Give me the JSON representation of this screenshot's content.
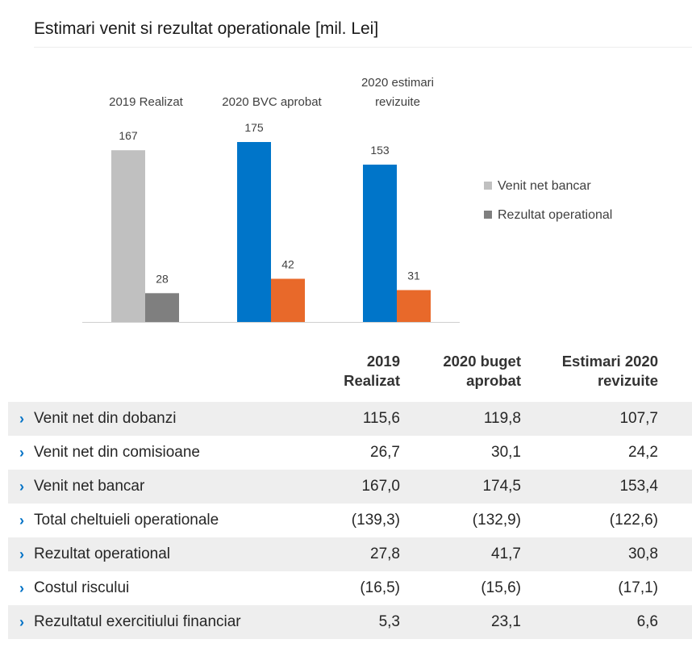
{
  "page_title": "Estimari venit si rezultat operationale [mil. Lei]",
  "chart_data": {
    "type": "bar",
    "categories": [
      "2019 Realizat",
      "2020 BVC aprobat",
      "2020 estimari revizuite"
    ],
    "series": [
      {
        "name": "Venit net bancar",
        "values": [
          167,
          175,
          153
        ]
      },
      {
        "name": "Rezultat operational",
        "values": [
          28,
          42,
          31
        ]
      }
    ],
    "data_labels": [
      [
        "167",
        "28"
      ],
      [
        "175",
        "42"
      ],
      [
        "153",
        "31"
      ]
    ],
    "colors": {
      "2019": [
        "#c0c0c0",
        "#7f7f7f"
      ],
      "2020": [
        "#0075c9",
        "#e8692a"
      ],
      "legend": [
        "#c0c0c0",
        "#7f7f7f"
      ]
    },
    "ylim": [
      0,
      175
    ],
    "legend_position": "right"
  },
  "table": {
    "headers": [
      "2019\nRealizat",
      "2020 buget\naprobat",
      "Estimari 2020\nrevizuite"
    ],
    "rows": [
      {
        "label": "Venit net din dobanzi",
        "values": [
          "115,6",
          "119,8",
          "107,7"
        ]
      },
      {
        "label": "Venit net din comisioane",
        "values": [
          "26,7",
          "30,1",
          "24,2"
        ]
      },
      {
        "label": "Venit net bancar",
        "values": [
          "167,0",
          "174,5",
          "153,4"
        ]
      },
      {
        "label": "Total cheltuieli operationale",
        "values": [
          "(139,3)",
          "(132,9)",
          "(122,6)"
        ]
      },
      {
        "label": "Rezultat operational",
        "values": [
          "27,8",
          "41,7",
          "30,8"
        ]
      },
      {
        "label": "Costul riscului",
        "values": [
          "(16,5)",
          "(15,6)",
          "(17,1)"
        ]
      },
      {
        "label": "Rezultatul exercitiului financiar",
        "values": [
          "5,3",
          "23,1",
          "6,6"
        ]
      }
    ],
    "chevron": "chevron-right-icon"
  }
}
